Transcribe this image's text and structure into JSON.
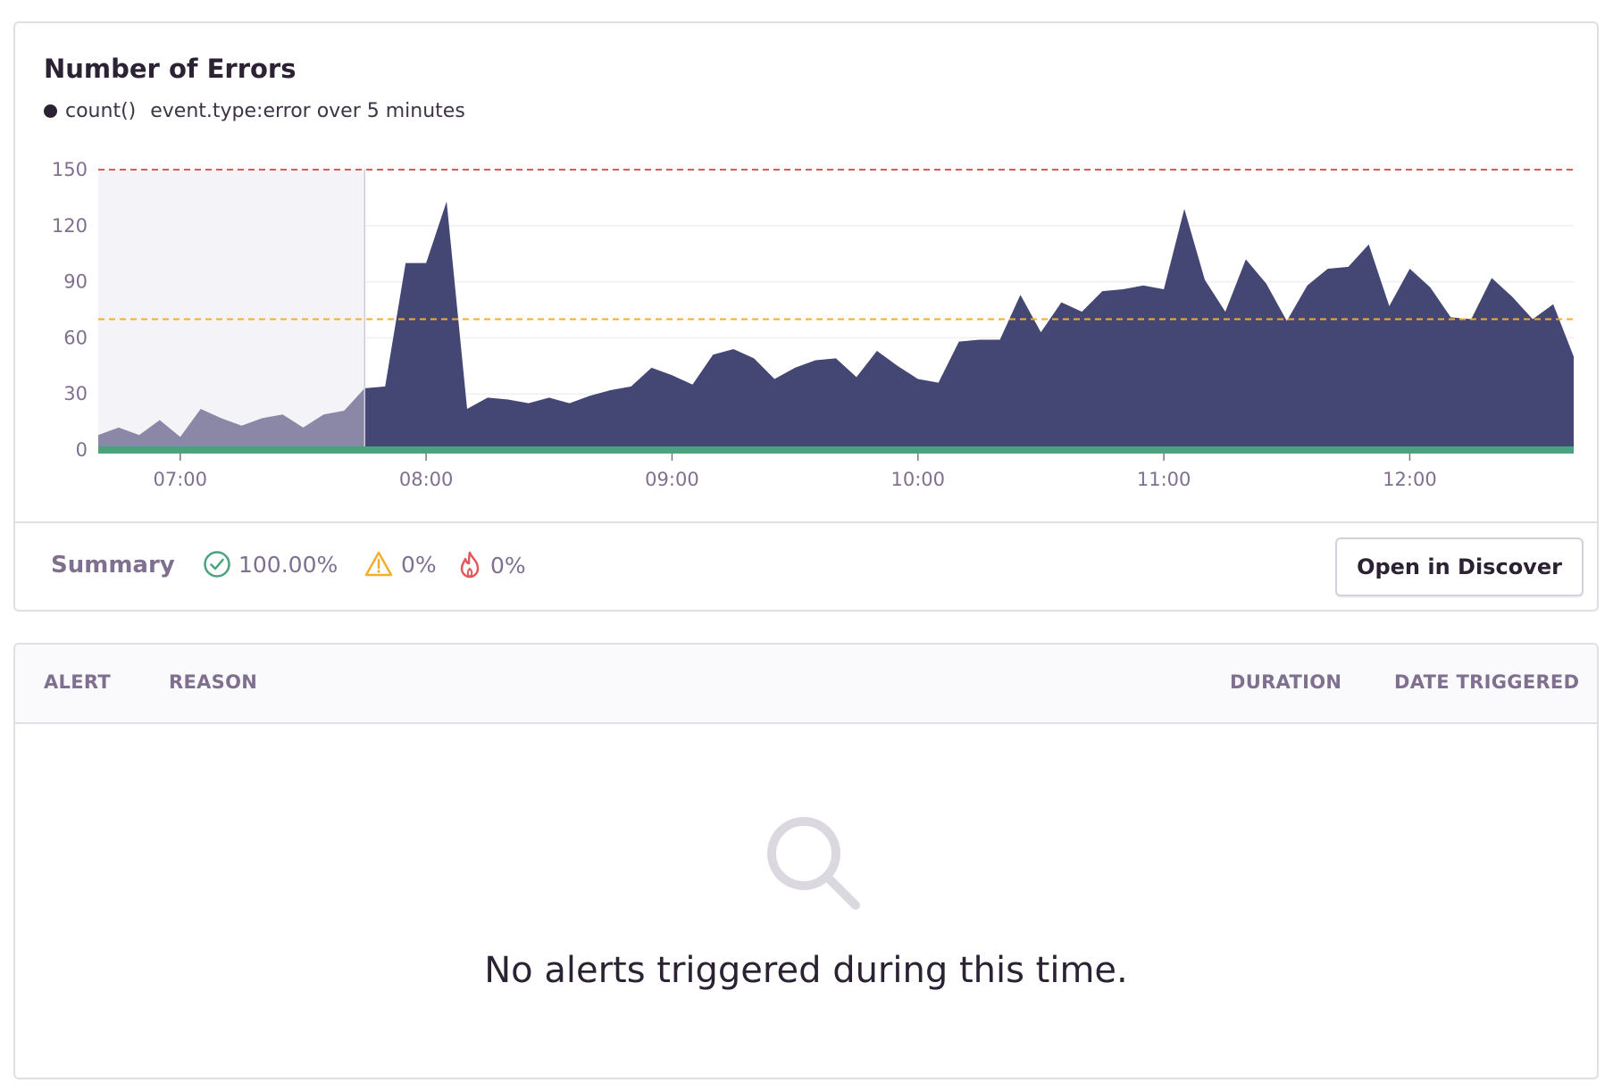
{
  "chart": {
    "title": "Number of Errors",
    "legend_series": "count()",
    "legend_query": "event.type:error over 5 minutes"
  },
  "chart_data": {
    "type": "area",
    "title": "Number of Errors",
    "ylim": [
      0,
      150
    ],
    "y_ticks": [
      "0",
      "30",
      "60",
      "90",
      "120",
      "150"
    ],
    "x_ticks": [
      "07:00",
      "08:00",
      "09:00",
      "10:00",
      "11:00",
      "12:00"
    ],
    "x_unit": "minutes since 06:40",
    "x": [
      0,
      5,
      10,
      15,
      20,
      25,
      30,
      35,
      40,
      45,
      50,
      55,
      60,
      65,
      70,
      75,
      80,
      85,
      90,
      95,
      100,
      105,
      110,
      115,
      120,
      125,
      130,
      135,
      140,
      145,
      150,
      155,
      160,
      165,
      170,
      175,
      180,
      185,
      190,
      195,
      200,
      205,
      210,
      215,
      220,
      225,
      230,
      235,
      240,
      245,
      250,
      255,
      260,
      265,
      270,
      275,
      280,
      285,
      290,
      295,
      300,
      305,
      310,
      315,
      320,
      325,
      330,
      335,
      340,
      345,
      350,
      355,
      360
    ],
    "values": [
      8,
      12,
      8,
      16,
      7,
      22,
      17,
      13,
      17,
      19,
      12,
      19,
      21,
      33,
      34,
      100,
      100,
      133,
      22,
      28,
      27,
      25,
      28,
      25,
      29,
      32,
      34,
      44,
      40,
      35,
      51,
      54,
      49,
      38,
      44,
      48,
      49,
      39,
      53,
      45,
      38,
      36,
      58,
      59,
      59,
      83,
      63,
      79,
      74,
      85,
      86,
      88,
      86,
      129,
      91,
      74,
      102,
      89,
      69,
      88,
      97,
      98,
      110,
      77,
      97,
      87,
      71,
      70,
      92,
      82,
      70,
      78,
      50
    ],
    "shaded_until": 65,
    "critical_threshold": 150,
    "warning_threshold": 70,
    "colors": {
      "area_shaded": "#8b87a6",
      "area": "#444674",
      "baseline": "#4aa37c",
      "critical": "#e0585b",
      "warning": "#f2ae2f"
    }
  },
  "summary": {
    "label": "Summary",
    "resolved": "100.00%",
    "warning": "0%",
    "critical": "0%",
    "open_button": "Open in Discover"
  },
  "table": {
    "columns": [
      "ALERT",
      "REASON",
      "DURATION",
      "DATE TRIGGERED"
    ],
    "empty_message": "No alerts triggered during this time.",
    "empty_icon": "search-icon"
  }
}
